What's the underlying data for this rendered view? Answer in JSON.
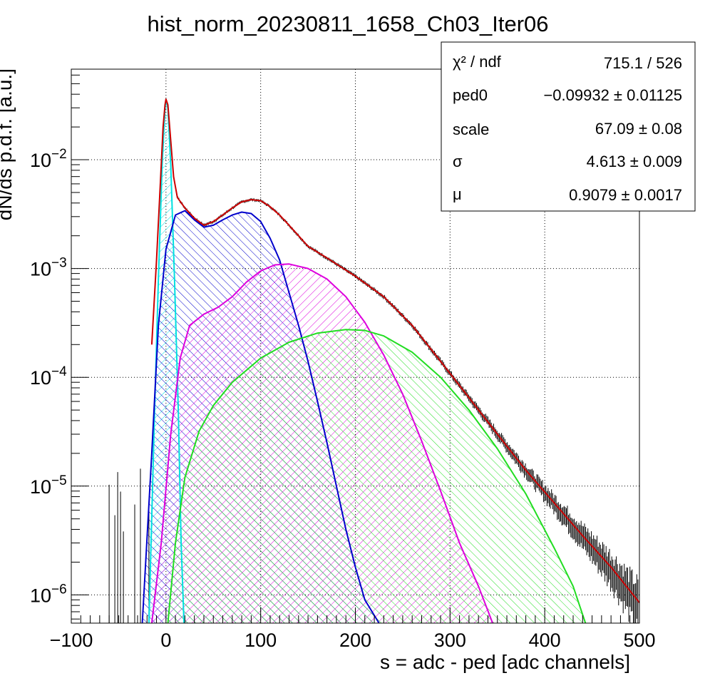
{
  "chart_data": {
    "type": "line",
    "title": "hist_norm_20230811_1658_Ch03_Iter06",
    "xlabel": "s = adc - ped [adc channels]",
    "ylabel": "dN/ds p.d.f. [a.u.]",
    "xlim": [
      -100,
      500
    ],
    "ylim": [
      5.5e-07,
      0.068
    ],
    "yscale": "log",
    "grid": true,
    "x_ticks": [
      {
        "value": -100,
        "label": "−100"
      },
      {
        "value": 0,
        "label": "0"
      },
      {
        "value": 100,
        "label": "100"
      },
      {
        "value": 200,
        "label": "200"
      },
      {
        "value": 300,
        "label": "300"
      },
      {
        "value": 400,
        "label": "400"
      },
      {
        "value": 500,
        "label": "500"
      }
    ],
    "y_ticks": [
      {
        "value": 1e-06,
        "base": "10",
        "exp": "−6"
      },
      {
        "value": 1e-05,
        "base": "10",
        "exp": "−5"
      },
      {
        "value": 0.0001,
        "base": "10",
        "exp": "−4"
      },
      {
        "value": 0.001,
        "base": "10",
        "exp": "−3"
      },
      {
        "value": 0.01,
        "base": "10",
        "exp": "−2"
      }
    ],
    "stats_box": {
      "placement": "top-right",
      "rows": [
        {
          "name": "χ² / ndf",
          "value": "715.1 / 526"
        },
        {
          "name": "ped0",
          "value": "−0.09932 ± 0.01125"
        },
        {
          "name": "scale",
          "value": "67.09 ± 0.08"
        },
        {
          "name": "σ",
          "value": "4.613 ± 0.009"
        },
        {
          "name": "μ",
          "value": "0.9079 ± 0.0017"
        }
      ]
    },
    "series": [
      {
        "color": "#00e0e0",
        "hatched": true,
        "points": [
          [
            -18,
            5.5e-07
          ],
          [
            -12,
            5e-05
          ],
          [
            -8,
            0.0008
          ],
          [
            -4,
            0.009
          ],
          [
            -1,
            0.03
          ],
          [
            0,
            0.035
          ],
          [
            2,
            0.03
          ],
          [
            5,
            0.009
          ],
          [
            9,
            0.0008
          ],
          [
            13,
            5e-05
          ],
          [
            16,
            3e-06
          ],
          [
            19,
            5.5e-07
          ]
        ]
      },
      {
        "color": "#0000cc",
        "hatched": true,
        "points": [
          [
            -25,
            5.5e-07
          ],
          [
            -15,
            2e-05
          ],
          [
            -8,
            0.0003
          ],
          [
            0,
            0.0015
          ],
          [
            10,
            0.0031
          ],
          [
            20,
            0.0034
          ],
          [
            30,
            0.0028
          ],
          [
            40,
            0.0024
          ],
          [
            50,
            0.0025
          ],
          [
            60,
            0.0028
          ],
          [
            70,
            0.0031
          ],
          [
            80,
            0.0033
          ],
          [
            90,
            0.0032
          ],
          [
            100,
            0.0027
          ],
          [
            110,
            0.0019
          ],
          [
            120,
            0.0012
          ],
          [
            130,
            0.0006
          ],
          [
            140,
            0.0003
          ],
          [
            150,
            0.00014
          ],
          [
            160,
            6e-05
          ],
          [
            170,
            2.5e-05
          ],
          [
            180,
            1e-05
          ],
          [
            190,
            4e-06
          ],
          [
            200,
            1.8e-06
          ],
          [
            210,
            9e-07
          ],
          [
            225,
            5.5e-07
          ]
        ]
      },
      {
        "color": "#dd00dd",
        "hatched": true,
        "points": [
          [
            -15,
            5.5e-07
          ],
          [
            -5,
            3e-06
          ],
          [
            5,
            3e-05
          ],
          [
            15,
            0.00015
          ],
          [
            25,
            0.0003
          ],
          [
            40,
            0.00038
          ],
          [
            55,
            0.00044
          ],
          [
            70,
            0.00055
          ],
          [
            85,
            0.00075
          ],
          [
            100,
            0.00095
          ],
          [
            115,
            0.00108
          ],
          [
            130,
            0.0011
          ],
          [
            150,
            0.001
          ],
          [
            170,
            0.0008
          ],
          [
            190,
            0.00055
          ],
          [
            210,
            0.00032
          ],
          [
            230,
            0.00016
          ],
          [
            250,
            7e-05
          ],
          [
            270,
            2.6e-05
          ],
          [
            290,
            9e-06
          ],
          [
            310,
            3e-06
          ],
          [
            330,
            1.2e-06
          ],
          [
            345,
            5.5e-07
          ]
        ]
      },
      {
        "color": "#22dd22",
        "hatched": true,
        "points": [
          [
            2,
            5.5e-07
          ],
          [
            10,
            3e-06
          ],
          [
            20,
            1.2e-05
          ],
          [
            35,
            3.2e-05
          ],
          [
            50,
            5.5e-05
          ],
          [
            70,
            9e-05
          ],
          [
            100,
            0.00015
          ],
          [
            130,
            0.00021
          ],
          [
            160,
            0.000255
          ],
          [
            190,
            0.000275
          ],
          [
            210,
            0.00027
          ],
          [
            230,
            0.00024
          ],
          [
            260,
            0.00017
          ],
          [
            290,
            0.0001
          ],
          [
            320,
            5e-05
          ],
          [
            350,
            2.2e-05
          ],
          [
            380,
            8.5e-06
          ],
          [
            410,
            2.7e-06
          ],
          [
            430,
            1.2e-06
          ],
          [
            443,
            5.5e-07
          ]
        ]
      },
      {
        "color": "#cc0000",
        "hatched": false,
        "points": [
          [
            -15,
            0.0002
          ],
          [
            -10,
            0.0012
          ],
          [
            -6,
            0.006
          ],
          [
            -3,
            0.02
          ],
          [
            -1,
            0.032
          ],
          [
            0,
            0.036
          ],
          [
            2,
            0.032
          ],
          [
            5,
            0.015
          ],
          [
            8,
            0.007
          ],
          [
            12,
            0.0045
          ],
          [
            20,
            0.0036
          ],
          [
            30,
            0.0029
          ],
          [
            40,
            0.0025
          ],
          [
            50,
            0.0027
          ],
          [
            60,
            0.0031
          ],
          [
            70,
            0.0036
          ],
          [
            80,
            0.0041
          ],
          [
            90,
            0.0043
          ],
          [
            100,
            0.0042
          ],
          [
            110,
            0.0037
          ],
          [
            120,
            0.0031
          ],
          [
            130,
            0.0025
          ],
          [
            140,
            0.002
          ],
          [
            150,
            0.0016
          ],
          [
            170,
            0.00125
          ],
          [
            200,
            0.00085
          ],
          [
            230,
            0.00055
          ],
          [
            260,
            0.0003
          ],
          [
            290,
            0.00014
          ],
          [
            320,
            6.5e-05
          ],
          [
            350,
            3e-05
          ],
          [
            380,
            1.4e-05
          ],
          [
            410,
            7e-06
          ],
          [
            440,
            3.5e-06
          ],
          [
            470,
            1.8e-06
          ],
          [
            500,
            8.5e-07
          ]
        ]
      }
    ]
  }
}
